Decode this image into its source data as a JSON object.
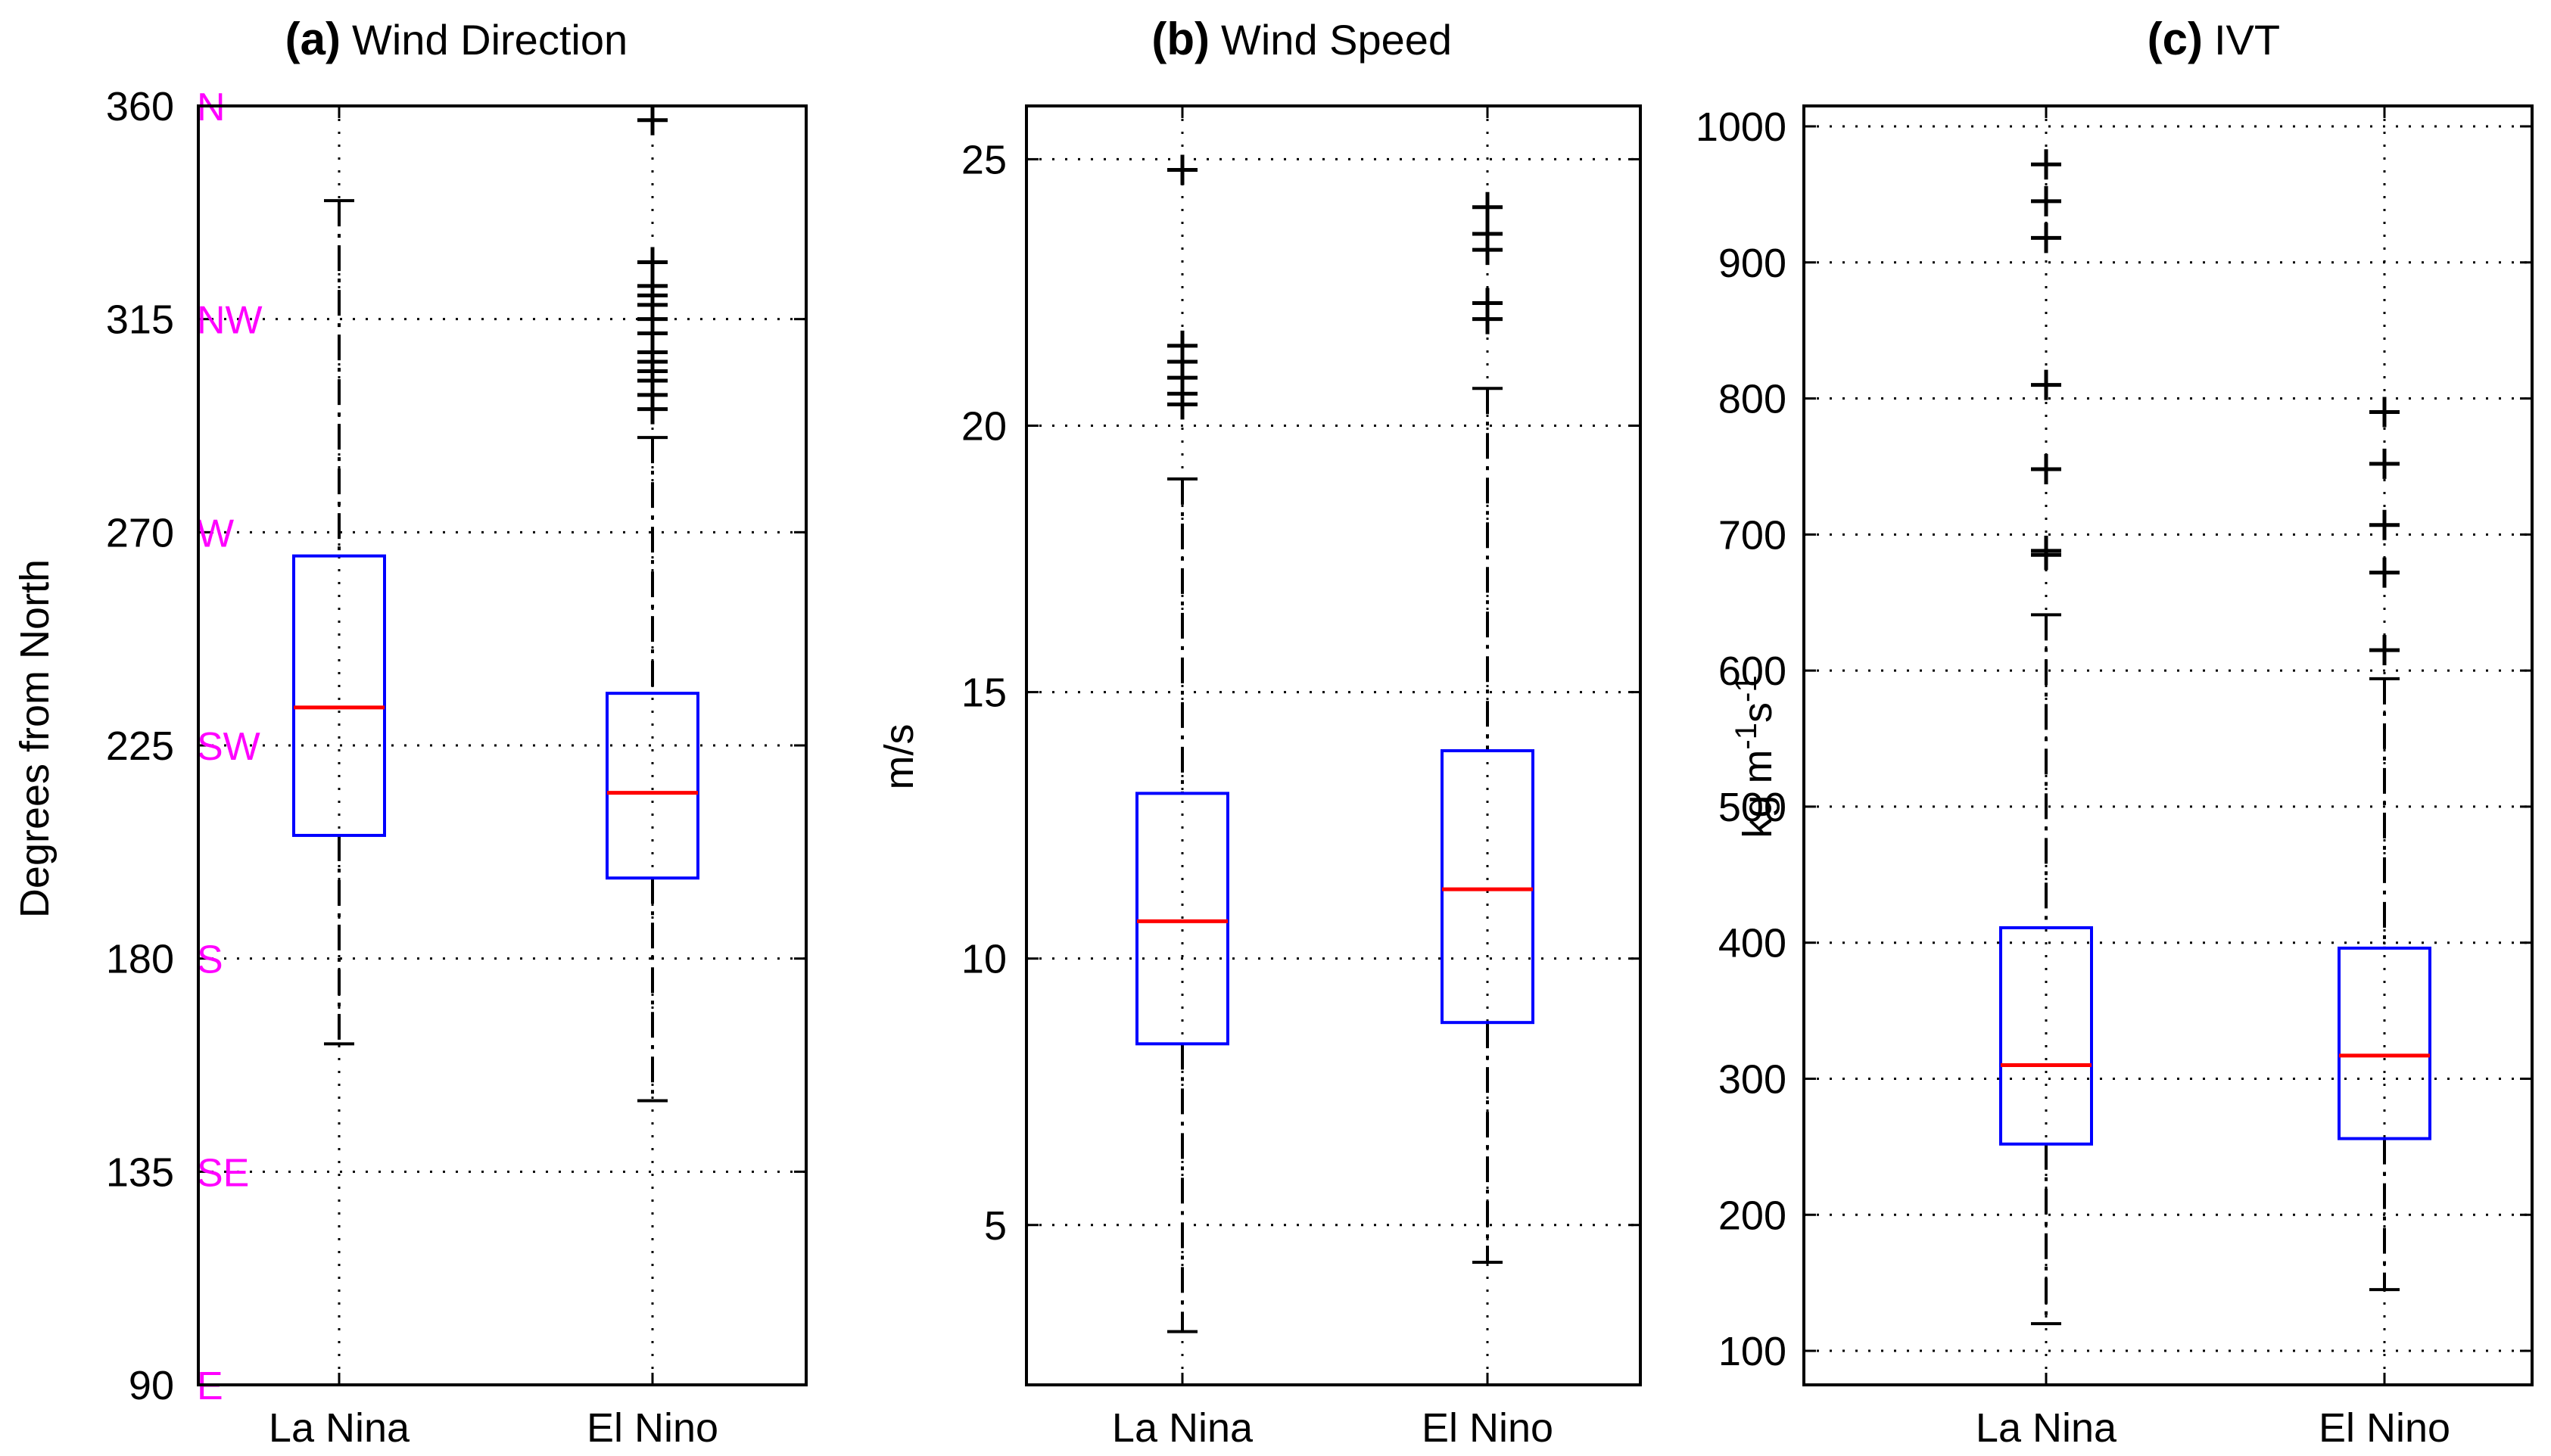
{
  "figure": {
    "type": "box-plot panel figure"
  },
  "colors": {
    "axis": "#000000",
    "box": "#0000ff",
    "median": "#ff0000",
    "compass": "#ff00ff",
    "grid": "#000000",
    "background": "#ffffff"
  },
  "chart_data": [
    {
      "type": "boxplot",
      "panel_letter": "(a)",
      "title": "Wind Direction",
      "ylabel": "Degrees from North",
      "xlabel": "",
      "categories": [
        "La Nina",
        "El Nino"
      ],
      "ylim": [
        90,
        360
      ],
      "yticks": [
        90,
        135,
        180,
        225,
        270,
        315,
        360
      ],
      "ytick_labels": [
        "90",
        "135",
        "180",
        "225",
        "270",
        "315",
        "360"
      ],
      "compass_ticks": [
        {
          "value": 360,
          "label": "N"
        },
        {
          "value": 315,
          "label": "NW"
        },
        {
          "value": 270,
          "label": "W"
        },
        {
          "value": 225,
          "label": "SW"
        },
        {
          "value": 180,
          "label": "S"
        },
        {
          "value": 135,
          "label": "SE"
        },
        {
          "value": 90,
          "label": "E"
        }
      ],
      "grid": true,
      "boxes": [
        {
          "name": "La Nina",
          "whisker_low": 162,
          "q1": 206,
          "median": 233,
          "q3": 265,
          "whisker_high": 340,
          "outliers": []
        },
        {
          "name": "El Nino",
          "whisker_low": 150,
          "q1": 197,
          "median": 215,
          "q3": 236,
          "whisker_high": 290,
          "outliers": [
            296,
            299,
            302,
            304,
            306,
            308,
            312,
            315,
            318,
            320,
            322,
            327,
            357
          ]
        }
      ]
    },
    {
      "type": "boxplot",
      "panel_letter": "(b)",
      "title": "Wind Speed",
      "ylabel": "m/s",
      "xlabel": "",
      "categories": [
        "La Nina",
        "El Nino"
      ],
      "ylim": [
        2,
        26
      ],
      "yticks": [
        5,
        10,
        15,
        20,
        25
      ],
      "ytick_labels": [
        "5",
        "10",
        "15",
        "20",
        "25"
      ],
      "grid": true,
      "boxes": [
        {
          "name": "La Nina",
          "whisker_low": 3.0,
          "q1": 8.4,
          "median": 10.7,
          "q3": 13.1,
          "whisker_high": 19.0,
          "outliers": [
            20.4,
            20.6,
            20.9,
            21.2,
            21.5,
            24.8
          ]
        },
        {
          "name": "El Nino",
          "whisker_low": 4.3,
          "q1": 8.8,
          "median": 11.3,
          "q3": 13.9,
          "whisker_high": 20.7,
          "outliers": [
            22.0,
            22.3,
            23.3,
            23.6,
            24.1
          ]
        }
      ]
    },
    {
      "type": "boxplot",
      "panel_letter": "(c)",
      "title": "IVT",
      "ylabel": "kg m -1s-1",
      "ylabel_parts": {
        "base": "kg m",
        "exp1": "-1",
        "mid": "s",
        "exp2": "-1"
      },
      "xlabel": "",
      "categories": [
        "La Nina",
        "El Nino"
      ],
      "ylim": [
        75,
        1015
      ],
      "yticks": [
        100,
        200,
        300,
        400,
        500,
        600,
        700,
        800,
        900,
        1000
      ],
      "ytick_labels": [
        "100",
        "200",
        "300",
        "400",
        "500",
        "600",
        "700",
        "800",
        "900",
        "1000"
      ],
      "grid": true,
      "boxes": [
        {
          "name": "La Nina",
          "whisker_low": 120,
          "q1": 252,
          "median": 310,
          "q3": 411,
          "whisker_high": 641,
          "outliers": [
            685,
            688,
            748,
            810,
            918,
            945,
            972
          ]
        },
        {
          "name": "El Nino",
          "whisker_low": 145,
          "q1": 256,
          "median": 317,
          "q3": 396,
          "whisker_high": 594,
          "outliers": [
            615,
            672,
            707,
            752,
            790
          ]
        }
      ]
    }
  ]
}
